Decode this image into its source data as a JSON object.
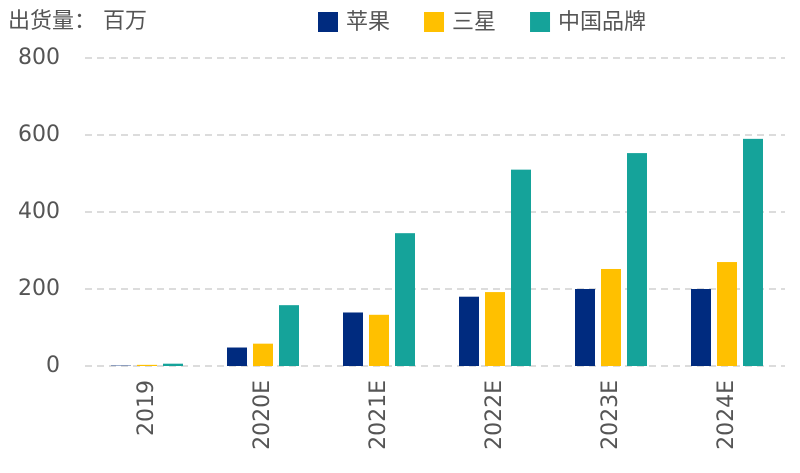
{
  "chart_data": {
    "type": "bar",
    "title": "出货量： 百万",
    "categories": [
      "2019",
      "2020E",
      "2021E",
      "2022E",
      "2023E",
      "2024E"
    ],
    "series": [
      {
        "name": "苹果",
        "color": "#002b7f",
        "values": [
          1,
          48,
          139,
          180,
          200,
          200
        ]
      },
      {
        "name": "三星",
        "color": "#ffc000",
        "values": [
          3,
          58,
          133,
          192,
          252,
          270
        ]
      },
      {
        "name": "中国品牌",
        "color": "#15a39a",
        "values": [
          6,
          158,
          345,
          510,
          553,
          590
        ]
      }
    ],
    "ylim": [
      0,
      800
    ],
    "yticks": [
      0,
      200,
      400,
      600,
      800
    ],
    "grid": true
  }
}
